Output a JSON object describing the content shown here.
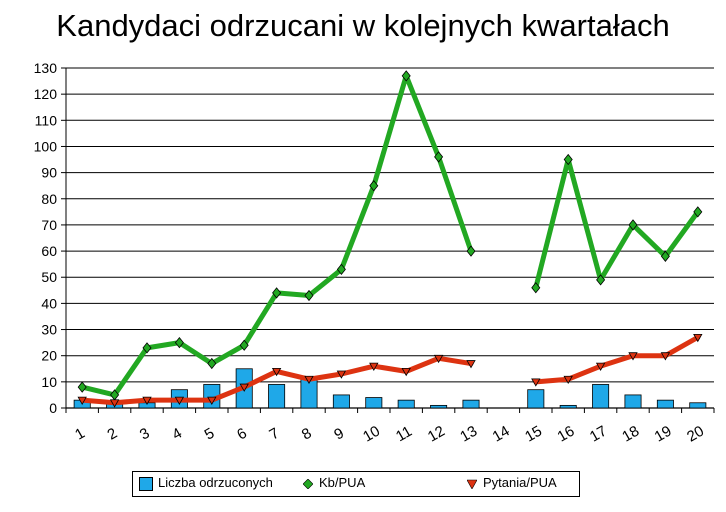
{
  "chart_data": {
    "type": "bar",
    "title": "Kandydaci odrzucani w kolejnych kwartałach",
    "xlabel": "",
    "ylabel": "",
    "ylim": [
      0,
      130
    ],
    "y_ticks": [
      0,
      10,
      20,
      30,
      40,
      50,
      60,
      70,
      80,
      90,
      100,
      110,
      120,
      130
    ],
    "grid": true,
    "legend_position": "bottom",
    "categories": [
      "1",
      "2",
      "3",
      "4",
      "5",
      "6",
      "7",
      "8",
      "9",
      "10",
      "11",
      "12",
      "13",
      "14",
      "15",
      "16",
      "17",
      "18",
      "19",
      "20"
    ],
    "series": [
      {
        "name": "Liczba odrzuconych",
        "type": "bar",
        "color": "#1fa8e8",
        "values": [
          3,
          2,
          2,
          7,
          9,
          15,
          9,
          12,
          5,
          4,
          3,
          1,
          3,
          null,
          7,
          1,
          9,
          5,
          3,
          2
        ]
      },
      {
        "name": "Kb/PUA",
        "type": "line",
        "color": "#22a822",
        "marker": "diamond",
        "values": [
          8,
          5,
          23,
          25,
          17,
          24,
          44,
          43,
          53,
          85,
          127,
          96,
          60,
          null,
          46,
          95,
          49,
          70,
          58,
          75
        ]
      },
      {
        "name": "Pytania/PUA",
        "type": "line",
        "color": "#dd3311",
        "marker": "triangle-down",
        "values": [
          3,
          2,
          3,
          3,
          3,
          8,
          14,
          11,
          13,
          16,
          14,
          19,
          17,
          null,
          10,
          11,
          16,
          20,
          20,
          27
        ]
      }
    ]
  }
}
